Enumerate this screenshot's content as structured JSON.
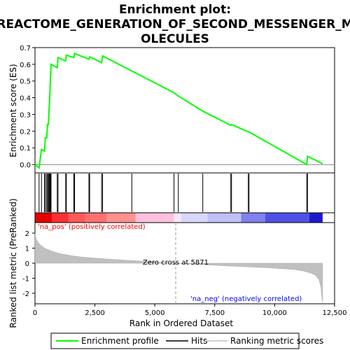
{
  "chart_data": {
    "type": "line",
    "title_line1": "Enrichment plot:",
    "title_line2": "REACTOME_GENERATION_OF_SECOND_MESSENGER_M",
    "title_line3": "OLECULES",
    "top_panel": {
      "ylabel": "Enrichment score (ES)",
      "ylim": [
        -0.05,
        0.7
      ],
      "yticks": [
        "0.0",
        "0.1",
        "0.2",
        "0.3",
        "0.4",
        "0.5",
        "0.6",
        "0.7"
      ],
      "ytick_values": [
        0.0,
        0.1,
        0.2,
        0.3,
        0.4,
        0.5,
        0.6,
        0.7
      ],
      "series_name": "Enrichment profile",
      "line_color": "#00ff00",
      "points": [
        [
          0,
          0.0
        ],
        [
          170,
          -0.02
        ],
        [
          270,
          0.09
        ],
        [
          400,
          0.08
        ],
        [
          430,
          0.16
        ],
        [
          490,
          0.16
        ],
        [
          520,
          0.24
        ],
        [
          560,
          0.24
        ],
        [
          580,
          0.31
        ],
        [
          610,
          0.38
        ],
        [
          630,
          0.46
        ],
        [
          650,
          0.53
        ],
        [
          670,
          0.6
        ],
        [
          930,
          0.58
        ],
        [
          960,
          0.64
        ],
        [
          1280,
          0.62
        ],
        [
          1310,
          0.655
        ],
        [
          1620,
          0.64
        ],
        [
          1650,
          0.665
        ],
        [
          2250,
          0.63
        ],
        [
          2280,
          0.645
        ],
        [
          2780,
          0.61
        ],
        [
          2820,
          0.65
        ],
        [
          4040,
          0.56
        ],
        [
          5800,
          0.43
        ],
        [
          5980,
          0.41
        ],
        [
          7000,
          0.32
        ],
        [
          8170,
          0.235
        ],
        [
          8200,
          0.24
        ],
        [
          8900,
          0.195
        ],
        [
          8930,
          0.195
        ],
        [
          11340,
          0.0
        ],
        [
          11370,
          0.05
        ],
        [
          12000,
          0.005
        ]
      ]
    },
    "hits": {
      "series_name": "Hits",
      "positions": [
        170,
        270,
        400,
        430,
        490,
        520,
        560,
        580,
        610,
        630,
        650,
        670,
        930,
        960,
        1280,
        1310,
        1620,
        1650,
        2250,
        2280,
        2780,
        2820,
        4040,
        5800,
        5980,
        7000,
        8170,
        8200,
        8900,
        8930,
        11340,
        11370
      ]
    },
    "bottom_panel": {
      "ylabel": "Ranked list metric (PreRanked)",
      "ylim": [
        -2.7,
        2.7
      ],
      "yticks": [
        "-2",
        "-1",
        "0",
        "1",
        "2"
      ],
      "ytick_values": [
        -2,
        -1,
        0,
        1,
        2
      ],
      "series_name": "Ranking metric scores",
      "fill_color": "#c0c0c0",
      "metric_curve": [
        [
          0,
          2.0
        ],
        [
          30,
          1.7
        ],
        [
          100,
          1.45
        ],
        [
          200,
          1.25
        ],
        [
          400,
          1.0
        ],
        [
          700,
          0.8
        ],
        [
          1000,
          0.65
        ],
        [
          1500,
          0.5
        ],
        [
          2000,
          0.4
        ],
        [
          3000,
          0.28
        ],
        [
          4000,
          0.18
        ],
        [
          5000,
          0.08
        ],
        [
          5871,
          0.0
        ],
        [
          7000,
          -0.1
        ],
        [
          8000,
          -0.18
        ],
        [
          9000,
          -0.25
        ],
        [
          10000,
          -0.33
        ],
        [
          10800,
          -0.42
        ],
        [
          11200,
          -0.52
        ],
        [
          11500,
          -0.65
        ],
        [
          11700,
          -0.8
        ],
        [
          11850,
          -1.1
        ],
        [
          11930,
          -1.6
        ],
        [
          11980,
          -2.4
        ],
        [
          12000,
          -2.6
        ]
      ],
      "pos_label": "'na_pos' (positively correlated)",
      "neg_label": "'na_neg' (negatively correlated)",
      "zero_cross_label": "Zero cross at 5871",
      "zero_cross_value": 5871,
      "pos_label_color": "#ff0000",
      "neg_label_color": "#0000ff"
    },
    "xaxis": {
      "xlabel": "Rank in Ordered Dataset",
      "xlim": [
        0,
        12500
      ],
      "xticks": [
        "0",
        "2,500",
        "5,000",
        "7,500",
        "10,000",
        "12,500"
      ],
      "xtick_values": [
        0,
        2500,
        5000,
        7500,
        10000,
        12500
      ],
      "n_genes": 12000
    },
    "colorbar": {
      "segments": [
        {
          "from": 0,
          "to": 700,
          "color": "#e60000"
        },
        {
          "from": 700,
          "to": 1400,
          "color": "#ff3030"
        },
        {
          "from": 1400,
          "to": 2100,
          "color": "#ff5a5a"
        },
        {
          "from": 2100,
          "to": 3000,
          "color": "#ff7070"
        },
        {
          "from": 3000,
          "to": 4200,
          "color": "#ff9090"
        },
        {
          "from": 4200,
          "to": 5800,
          "color": "#ffc0e0"
        },
        {
          "from": 5800,
          "to": 6100,
          "color": "#f4e6f4"
        },
        {
          "from": 6100,
          "to": 7200,
          "color": "#d8d8fa"
        },
        {
          "from": 7200,
          "to": 8600,
          "color": "#c0c0f8"
        },
        {
          "from": 8600,
          "to": 9600,
          "color": "#8080f0"
        },
        {
          "from": 9600,
          "to": 11450,
          "color": "#5050e6"
        },
        {
          "from": 11450,
          "to": 12000,
          "color": "#1a1acc"
        }
      ]
    },
    "legend": {
      "items": [
        {
          "label": "Enrichment profile",
          "color": "#00ff00"
        },
        {
          "label": "Hits",
          "color": "#000000"
        },
        {
          "label": "Ranking metric scores",
          "color": "#c0c0c0"
        }
      ]
    }
  }
}
